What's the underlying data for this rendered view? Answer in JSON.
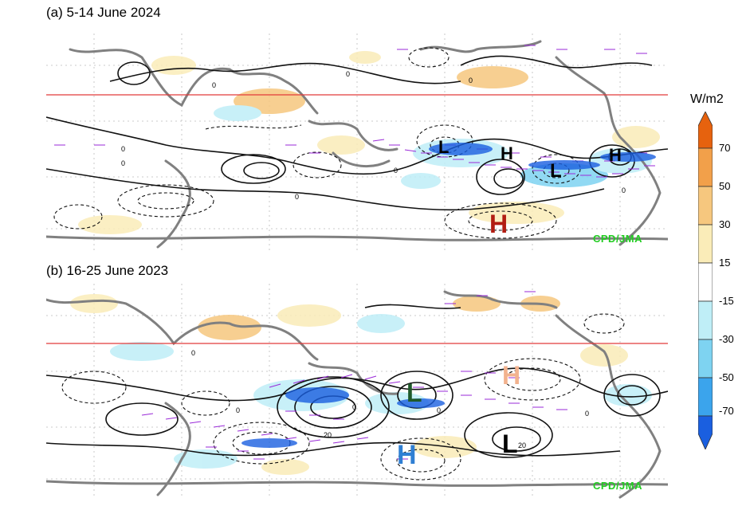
{
  "panels": [
    {
      "title": "(a) 5-14 June 2024",
      "credit": "CPD/JMA",
      "centers": [
        {
          "label": "L",
          "color": "#000000"
        },
        {
          "label": "H",
          "color": "#000000"
        },
        {
          "label": "L",
          "color": "#000000"
        },
        {
          "label": "H",
          "color": "#000000"
        },
        {
          "label": "H",
          "color": "#b21d12"
        }
      ],
      "contour_labels": [
        "0",
        "0",
        "0",
        "0",
        "0",
        "0",
        "0",
        "0"
      ]
    },
    {
      "title": "(b) 16-25 June 2023",
      "credit": "CPD/JMA",
      "centers": [
        {
          "label": "L",
          "color": "#1f5a2a"
        },
        {
          "label": "H",
          "color": "#f2b28e"
        },
        {
          "label": "L",
          "color": "#000000"
        },
        {
          "label": "H",
          "color": "#2f7fd3"
        }
      ],
      "contour_labels": [
        "0",
        "0",
        "0",
        "20",
        "0",
        "20",
        "0"
      ]
    }
  ],
  "colorbar": {
    "unit": "W/m2",
    "labels": [
      "70",
      "50",
      "30",
      "15",
      "-15",
      "-30",
      "-50",
      "-70"
    ],
    "colors": [
      "#e6620e",
      "#f2a04a",
      "#f6c77e",
      "#faecb8",
      "#ffffff",
      "#bfeef7",
      "#7ed3f1",
      "#3ba4ec",
      "#1a5fe0"
    ]
  }
}
